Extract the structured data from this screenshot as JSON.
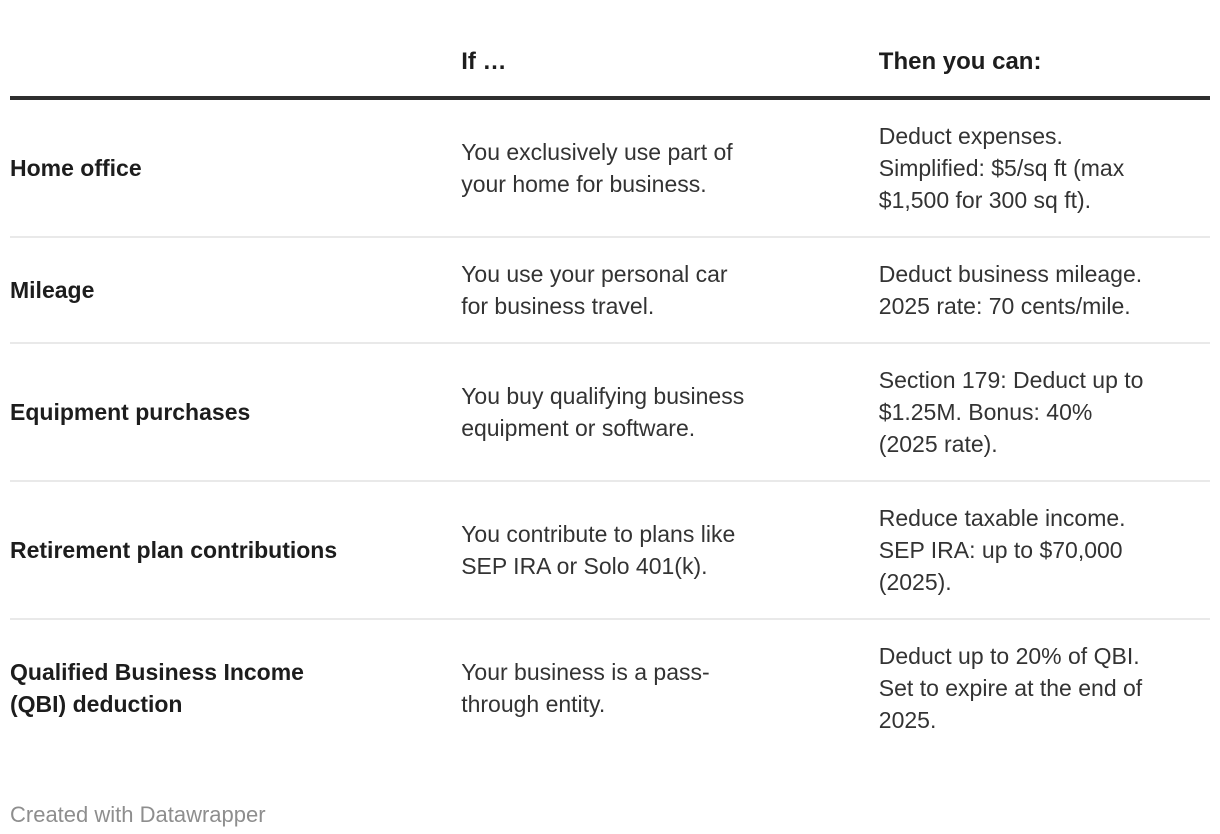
{
  "table": {
    "columns": [
      {
        "label": ""
      },
      {
        "label": "If …"
      },
      {
        "label": "Then you can:"
      }
    ],
    "rows": [
      {
        "category": "Home office",
        "if": "You exclusively use part of\nyour home for business.",
        "then": "Deduct expenses.\nSimplified: $5/sq ft (max\n$1,500 for 300 sq ft)."
      },
      {
        "category": "Mileage",
        "if": "You use your personal car\nfor business travel.",
        "then": "Deduct business mileage.\n2025 rate: 70 cents/mile."
      },
      {
        "category": "Equipment purchases",
        "if": "You buy qualifying business\nequipment or software.",
        "then": "Section 179: Deduct up to\n$1.25M. Bonus: 40%\n(2025 rate)."
      },
      {
        "category": "Retirement plan contributions",
        "if": "You contribute to plans like\nSEP IRA or Solo 401(k).",
        "then": "Reduce taxable income.\nSEP IRA: up to $70,000\n(2025)."
      },
      {
        "category": "Qualified Business Income\n(QBI) deduction",
        "if": "Your business is a pass-\nthrough entity.",
        "then": "Deduct up to 20% of QBI.\nSet to expire at the end of\n2025."
      }
    ]
  },
  "footer": {
    "credit": "Created with Datawrapper"
  },
  "colors": {
    "header_rule": "#2e2e2e",
    "row_divider": "#e9e9e9",
    "heading_text": "#1d1d1d",
    "body_text": "#333333",
    "muted_text": "#8e8e8e"
  }
}
